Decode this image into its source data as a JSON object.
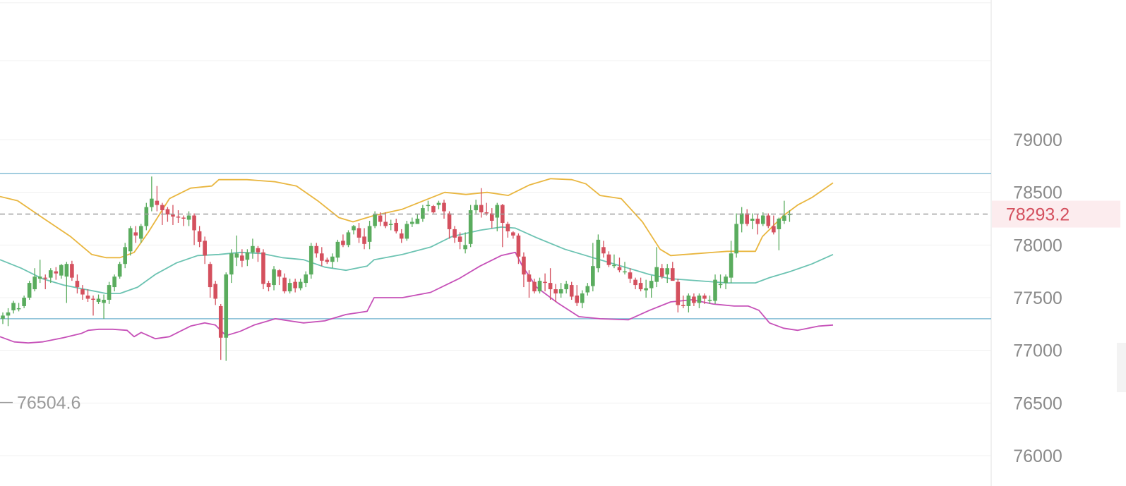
{
  "colors": {
    "up": "#5aac5e",
    "down": "#d4505e",
    "ma": "#6cc3b2",
    "upper_band": "#e9b63f",
    "lower_band": "#c650b8",
    "level_line": "#85bdd6",
    "last_price": "#d4505e",
    "grid": "#f0f0f0",
    "axis_text": "#8a8a8a"
  },
  "chart_data": {
    "type": "candlestick",
    "y_axis": {
      "ticks": [
        "79000",
        "78500",
        "78000",
        "77500",
        "77000",
        "76500",
        "76000"
      ],
      "range": [
        75950,
        80300
      ],
      "position": "right"
    },
    "last_price": {
      "label": "78293.2",
      "value": 78293.2
    },
    "low_marker": {
      "label": "76504.6",
      "value": 76504.6
    },
    "horizontal_levels": [
      78680,
      77300
    ],
    "candles": [
      [
        77300,
        77330,
        77250,
        77360
      ],
      [
        77330,
        77360,
        77230,
        77400
      ],
      [
        77380,
        77450,
        77350,
        77470
      ],
      [
        77400,
        77400,
        77370,
        77450
      ],
      [
        77420,
        77500,
        77400,
        77520
      ],
      [
        77500,
        77640,
        77480,
        77660
      ],
      [
        77580,
        77700,
        77560,
        77780
      ],
      [
        77680,
        77700,
        77640,
        77860
      ],
      [
        77690,
        77680,
        77580,
        77720
      ],
      [
        77690,
        77760,
        77640,
        77780
      ],
      [
        77750,
        77730,
        77670,
        77790
      ],
      [
        77710,
        77810,
        77680,
        77820
      ],
      [
        77700,
        77820,
        77450,
        77840
      ],
      [
        77820,
        77690,
        77660,
        77850
      ],
      [
        77660,
        77600,
        77540,
        77720
      ],
      [
        77580,
        77530,
        77480,
        77620
      ],
      [
        77520,
        77490,
        77460,
        77580
      ],
      [
        77490,
        77480,
        77330,
        77520
      ],
      [
        77460,
        77490,
        77440,
        77530
      ],
      [
        77450,
        77480,
        77300,
        77530
      ],
      [
        77480,
        77620,
        77440,
        77650
      ],
      [
        77600,
        77700,
        77560,
        77720
      ],
      [
        77700,
        77820,
        77680,
        77840
      ],
      [
        77820,
        77980,
        77780,
        78020
      ],
      [
        77940,
        78160,
        77900,
        78180
      ],
      [
        78120,
        78090,
        78020,
        78180
      ],
      [
        78060,
        78180,
        78020,
        78200
      ],
      [
        78180,
        78360,
        78140,
        78400
      ],
      [
        78360,
        78440,
        78320,
        78650
      ],
      [
        78420,
        78380,
        78320,
        78560
      ],
      [
        78380,
        78330,
        78190,
        78400
      ],
      [
        78340,
        78290,
        78220,
        78360
      ],
      [
        78290,
        78270,
        78190,
        78380
      ],
      [
        78270,
        78260,
        78210,
        78330
      ],
      [
        78260,
        78250,
        78180,
        78280
      ],
      [
        78240,
        78280,
        78180,
        78320
      ],
      [
        78280,
        78140,
        78000,
        78300
      ],
      [
        78130,
        78030,
        77980,
        78180
      ],
      [
        78040,
        77900,
        77820,
        78080
      ],
      [
        77820,
        77600,
        77500,
        77840
      ],
      [
        77630,
        77490,
        77430,
        77660
      ],
      [
        77420,
        77120,
        76910,
        77440
      ],
      [
        77120,
        77720,
        76900,
        77740
      ],
      [
        77720,
        77920,
        77640,
        77960
      ],
      [
        77880,
        77920,
        77800,
        78090
      ],
      [
        77900,
        77850,
        77790,
        77960
      ],
      [
        77860,
        77930,
        77800,
        77960
      ],
      [
        77930,
        77990,
        77870,
        78060
      ],
      [
        77970,
        77930,
        77840,
        77990
      ],
      [
        77930,
        77630,
        77580,
        77960
      ],
      [
        77640,
        77600,
        77560,
        77660
      ],
      [
        77620,
        77770,
        77570,
        77800
      ],
      [
        77760,
        77700,
        77620,
        77770
      ],
      [
        77690,
        77560,
        77540,
        77730
      ],
      [
        77560,
        77640,
        77540,
        77680
      ],
      [
        77650,
        77590,
        77550,
        77680
      ],
      [
        77590,
        77650,
        77570,
        77680
      ],
      [
        77640,
        77720,
        77600,
        77750
      ],
      [
        77720,
        77990,
        77680,
        78020
      ],
      [
        77990,
        77920,
        77880,
        78020
      ],
      [
        77920,
        77850,
        77800,
        77980
      ],
      [
        77860,
        77840,
        77820,
        77880
      ],
      [
        77840,
        77890,
        77780,
        77920
      ],
      [
        77880,
        78030,
        77840,
        78050
      ],
      [
        78040,
        78000,
        77980,
        78100
      ],
      [
        78000,
        78120,
        77980,
        78140
      ],
      [
        78140,
        78180,
        78100,
        78190
      ],
      [
        78160,
        78070,
        78020,
        78210
      ],
      [
        78080,
        78010,
        77960,
        78160
      ],
      [
        78030,
        78180,
        77960,
        78230
      ],
      [
        78180,
        78290,
        78160,
        78320
      ],
      [
        78280,
        78220,
        78180,
        78310
      ],
      [
        78220,
        78180,
        78160,
        78310
      ],
      [
        78190,
        78200,
        78140,
        78240
      ],
      [
        78210,
        78130,
        78110,
        78250
      ],
      [
        78110,
        78060,
        78020,
        78150
      ],
      [
        78060,
        78200,
        78040,
        78230
      ],
      [
        78200,
        78220,
        78170,
        78260
      ],
      [
        78200,
        78250,
        78200,
        78290
      ],
      [
        78250,
        78350,
        78220,
        78380
      ],
      [
        78380,
        78380,
        78320,
        78420
      ],
      [
        78370,
        78310,
        78300,
        78380
      ],
      [
        78380,
        78400,
        78340,
        78420
      ],
      [
        78400,
        78320,
        78250,
        78430
      ],
      [
        78300,
        78150,
        78060,
        78320
      ],
      [
        78150,
        78070,
        78020,
        78180
      ],
      [
        78080,
        78030,
        77960,
        78120
      ],
      [
        77960,
        78000,
        77920,
        78120
      ],
      [
        78010,
        78330,
        77980,
        78380
      ],
      [
        78330,
        78380,
        78300,
        78430
      ],
      [
        78380,
        78310,
        78260,
        78540
      ],
      [
        78310,
        78300,
        78280,
        78400
      ],
      [
        78300,
        78230,
        78160,
        78350
      ],
      [
        78260,
        78380,
        78130,
        78400
      ],
      [
        78380,
        78210,
        77980,
        78390
      ],
      [
        78200,
        78130,
        78070,
        78220
      ],
      [
        78120,
        78090,
        78060,
        78130
      ],
      [
        78090,
        77890,
        77820,
        78110
      ],
      [
        77890,
        77720,
        77600,
        77930
      ],
      [
        77720,
        77650,
        77500,
        77760
      ],
      [
        77650,
        77560,
        77540,
        77680
      ],
      [
        77560,
        77660,
        77540,
        77690
      ],
      [
        77650,
        77640,
        77560,
        77730
      ],
      [
        77640,
        77580,
        77480,
        77780
      ],
      [
        77580,
        77540,
        77460,
        77630
      ],
      [
        77540,
        77580,
        77500,
        77640
      ],
      [
        77580,
        77630,
        77540,
        77660
      ],
      [
        77620,
        77510,
        77480,
        77650
      ],
      [
        77520,
        77450,
        77420,
        77620
      ],
      [
        77450,
        77540,
        77400,
        77570
      ],
      [
        77550,
        77610,
        77520,
        77640
      ],
      [
        77610,
        77800,
        77560,
        78020
      ],
      [
        77780,
        78050,
        77740,
        78100
      ],
      [
        77980,
        77920,
        77880,
        78040
      ],
      [
        77910,
        77810,
        77790,
        77940
      ],
      [
        77810,
        77810,
        77780,
        77910
      ],
      [
        77790,
        77760,
        77740,
        77880
      ],
      [
        77750,
        77750,
        77720,
        77840
      ],
      [
        77740,
        77680,
        77640,
        77780
      ],
      [
        77670,
        77620,
        77580,
        77690
      ],
      [
        77640,
        77580,
        77560,
        77690
      ],
      [
        77570,
        77590,
        77500,
        77670
      ],
      [
        77590,
        77660,
        77500,
        77710
      ],
      [
        77650,
        77790,
        77600,
        77980
      ],
      [
        77780,
        77700,
        77680,
        77820
      ],
      [
        77720,
        77780,
        77640,
        77820
      ],
      [
        77780,
        77660,
        77680,
        77840
      ],
      [
        77650,
        77430,
        77360,
        77680
      ],
      [
        77430,
        77420,
        77400,
        77520
      ],
      [
        77420,
        77520,
        77360,
        77540
      ],
      [
        77510,
        77450,
        77420,
        77540
      ],
      [
        77450,
        77520,
        77400,
        77540
      ],
      [
        77520,
        77490,
        77440,
        77540
      ],
      [
        77480,
        77480,
        77440,
        77520
      ],
      [
        77470,
        77670,
        77440,
        77720
      ],
      [
        77630,
        77630,
        77590,
        77720
      ],
      [
        77640,
        77700,
        77580,
        77720
      ],
      [
        77690,
        77920,
        77640,
        78040
      ],
      [
        77920,
        78200,
        77880,
        78300
      ],
      [
        78200,
        78300,
        78120,
        78360
      ],
      [
        78300,
        78200,
        78180,
        78340
      ],
      [
        78230,
        78250,
        78150,
        78300
      ],
      [
        78250,
        78200,
        78100,
        78290
      ],
      [
        78200,
        78280,
        78180,
        78310
      ],
      [
        78280,
        78180,
        78160,
        78300
      ],
      [
        78180,
        78120,
        78100,
        78280
      ],
      [
        78150,
        78250,
        77950,
        78260
      ],
      [
        78230,
        78280,
        78200,
        78420
      ],
      [
        78290,
        78293.2,
        78220,
        78330
      ]
    ],
    "candle_columns": "open, close, low, high",
    "x_start": 4,
    "x_step": 7.53,
    "upper_band": [
      [
        0,
        78460
      ],
      [
        25,
        78420
      ],
      [
        60,
        78260
      ],
      [
        100,
        78080
      ],
      [
        130,
        77910
      ],
      [
        150,
        77880
      ],
      [
        170,
        77880
      ],
      [
        190,
        77930
      ],
      [
        210,
        78120
      ],
      [
        240,
        78440
      ],
      [
        270,
        78540
      ],
      [
        300,
        78560
      ],
      [
        310,
        78620
      ],
      [
        350,
        78620
      ],
      [
        390,
        78600
      ],
      [
        420,
        78560
      ],
      [
        450,
        78420
      ],
      [
        480,
        78260
      ],
      [
        500,
        78220
      ],
      [
        530,
        78280
      ],
      [
        570,
        78340
      ],
      [
        600,
        78420
      ],
      [
        630,
        78500
      ],
      [
        660,
        78480
      ],
      [
        690,
        78500
      ],
      [
        720,
        78470
      ],
      [
        750,
        78570
      ],
      [
        780,
        78630
      ],
      [
        810,
        78620
      ],
      [
        830,
        78580
      ],
      [
        850,
        78470
      ],
      [
        880,
        78440
      ],
      [
        910,
        78220
      ],
      [
        935,
        77960
      ],
      [
        950,
        77900
      ],
      [
        990,
        77920
      ],
      [
        1030,
        77940
      ],
      [
        1070,
        77940
      ],
      [
        1080,
        78080
      ],
      [
        1110,
        78280
      ],
      [
        1130,
        78380
      ],
      [
        1150,
        78450
      ],
      [
        1180,
        78590
      ]
    ],
    "ma": [
      [
        0,
        77860
      ],
      [
        30,
        77780
      ],
      [
        60,
        77680
      ],
      [
        90,
        77620
      ],
      [
        120,
        77580
      ],
      [
        150,
        77540
      ],
      [
        170,
        77540
      ],
      [
        195,
        77600
      ],
      [
        220,
        77720
      ],
      [
        250,
        77830
      ],
      [
        280,
        77900
      ],
      [
        310,
        77910
      ],
      [
        340,
        77930
      ],
      [
        370,
        77920
      ],
      [
        400,
        77880
      ],
      [
        430,
        77860
      ],
      [
        460,
        77790
      ],
      [
        490,
        77760
      ],
      [
        520,
        77800
      ],
      [
        530,
        77860
      ],
      [
        570,
        77910
      ],
      [
        610,
        77980
      ],
      [
        640,
        78080
      ],
      [
        680,
        78140
      ],
      [
        710,
        78170
      ],
      [
        730,
        78160
      ],
      [
        760,
        78070
      ],
      [
        800,
        77960
      ],
      [
        840,
        77880
      ],
      [
        880,
        77800
      ],
      [
        920,
        77720
      ],
      [
        950,
        77680
      ],
      [
        990,
        77660
      ],
      [
        1030,
        77640
      ],
      [
        1070,
        77640
      ],
      [
        1090,
        77690
      ],
      [
        1120,
        77750
      ],
      [
        1150,
        77820
      ],
      [
        1180,
        77910
      ]
    ],
    "lower_band": [
      [
        0,
        77130
      ],
      [
        20,
        77080
      ],
      [
        40,
        77070
      ],
      [
        60,
        77080
      ],
      [
        90,
        77120
      ],
      [
        115,
        77160
      ],
      [
        125,
        77190
      ],
      [
        140,
        77200
      ],
      [
        160,
        77200
      ],
      [
        180,
        77190
      ],
      [
        190,
        77130
      ],
      [
        200,
        77170
      ],
      [
        220,
        77110
      ],
      [
        240,
        77130
      ],
      [
        270,
        77230
      ],
      [
        290,
        77260
      ],
      [
        305,
        77240
      ],
      [
        320,
        77140
      ],
      [
        340,
        77180
      ],
      [
        360,
        77240
      ],
      [
        390,
        77300
      ],
      [
        410,
        77280
      ],
      [
        430,
        77260
      ],
      [
        460,
        77280
      ],
      [
        490,
        77340
      ],
      [
        520,
        77370
      ],
      [
        530,
        77500
      ],
      [
        570,
        77500
      ],
      [
        610,
        77550
      ],
      [
        650,
        77680
      ],
      [
        680,
        77800
      ],
      [
        710,
        77900
      ],
      [
        730,
        77930
      ],
      [
        740,
        77800
      ],
      [
        760,
        77600
      ],
      [
        790,
        77450
      ],
      [
        820,
        77320
      ],
      [
        850,
        77300
      ],
      [
        890,
        77290
      ],
      [
        920,
        77380
      ],
      [
        950,
        77460
      ],
      [
        980,
        77480
      ],
      [
        1010,
        77440
      ],
      [
        1040,
        77420
      ],
      [
        1060,
        77420
      ],
      [
        1075,
        77380
      ],
      [
        1090,
        77260
      ],
      [
        1110,
        77210
      ],
      [
        1130,
        77190
      ],
      [
        1160,
        77230
      ],
      [
        1180,
        77240
      ]
    ]
  }
}
